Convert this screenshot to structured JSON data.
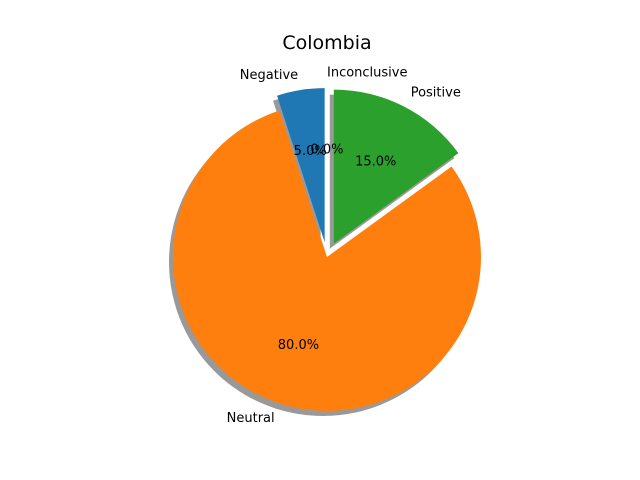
{
  "chart_data": {
    "type": "pie",
    "title": "Colombia",
    "categories": [
      "Negative",
      "Neutral",
      "Positive",
      "Inconclusive"
    ],
    "values": [
      5.0,
      80.0,
      15.0,
      0.0
    ],
    "percent_labels": [
      "5.0%",
      "80.0%",
      "15.0%",
      "0.0%"
    ],
    "colors": [
      "#1f77b4",
      "#ff7f0e",
      "#2ca02c",
      "#d62728"
    ],
    "exploded": [
      true,
      false,
      true,
      true
    ],
    "start_angle_deg": 90,
    "direction": "counterclockwise",
    "shadow": true,
    "legend": "none"
  }
}
